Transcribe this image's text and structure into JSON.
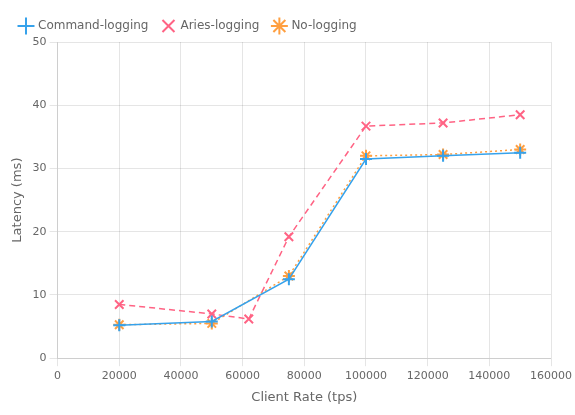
{
  "chart_data": {
    "type": "line",
    "xlabel": "Client Rate (tps)",
    "ylabel": "Latency (ms)",
    "series": [
      {
        "name": "Command-logging",
        "x": [
          20000,
          50000,
          75000,
          100000,
          125000,
          150000
        ],
        "values": [
          5.2,
          5.8,
          12.5,
          31.5,
          32.0,
          32.5
        ],
        "marker": "plus",
        "line_style": "solid"
      },
      {
        "name": "Aries-logging",
        "x": [
          20000,
          50000,
          62000,
          75000,
          100000,
          125000,
          150000
        ],
        "values": [
          8.5,
          7.0,
          6.2,
          19.2,
          36.7,
          37.2,
          38.5
        ],
        "marker": "x",
        "line_style": "dashed"
      },
      {
        "name": "No-logging",
        "x": [
          20000,
          50000,
          75000,
          100000,
          125000,
          150000
        ],
        "values": [
          5.3,
          5.5,
          13.0,
          32.0,
          32.2,
          33.0
        ],
        "marker": "star",
        "line_style": "dotted"
      }
    ],
    "xlim": [
      0,
      160000
    ],
    "ylim": [
      0,
      50
    ],
    "xticks": [
      0,
      20000,
      40000,
      60000,
      80000,
      100000,
      120000,
      140000,
      160000
    ],
    "yticks": [
      0,
      10,
      20,
      30,
      40,
      50
    ],
    "grid": true,
    "legend": "upper left"
  }
}
